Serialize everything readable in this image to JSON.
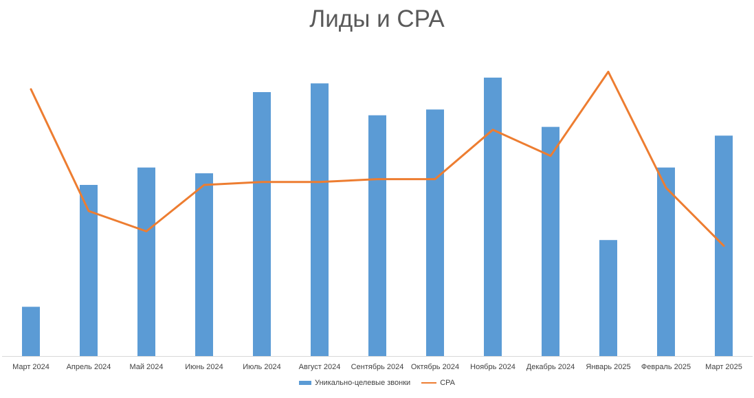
{
  "chart_data": {
    "type": "bar",
    "title": "Лиды и CPA",
    "categories": [
      "Март 2024",
      "Апрель 2024",
      "Май 2024",
      "Июнь 2024",
      "Июль 2024",
      "Август 2024",
      "Сентябрь 2024",
      "Октябрь 2024",
      "Ноябрь 2024",
      "Декабрь 2024",
      "Январь 2025",
      "Февраль 2025",
      "Март 2025"
    ],
    "series": [
      {
        "name": "Уникально-целевые звонки",
        "type": "bar",
        "color": "#5b9bd5",
        "values": [
          17,
          59,
          65,
          63,
          91,
          94,
          83,
          85,
          96,
          79,
          40,
          65,
          76
        ]
      },
      {
        "name": "CPA",
        "type": "line",
        "color": "#ed7d31",
        "values": [
          92,
          50,
          43,
          59,
          60,
          60,
          61,
          61,
          78,
          69,
          98,
          58,
          38
        ]
      }
    ],
    "ylim": [
      0,
      100
    ],
    "axes_visible": false,
    "grid": false,
    "legend_position": "bottom"
  }
}
